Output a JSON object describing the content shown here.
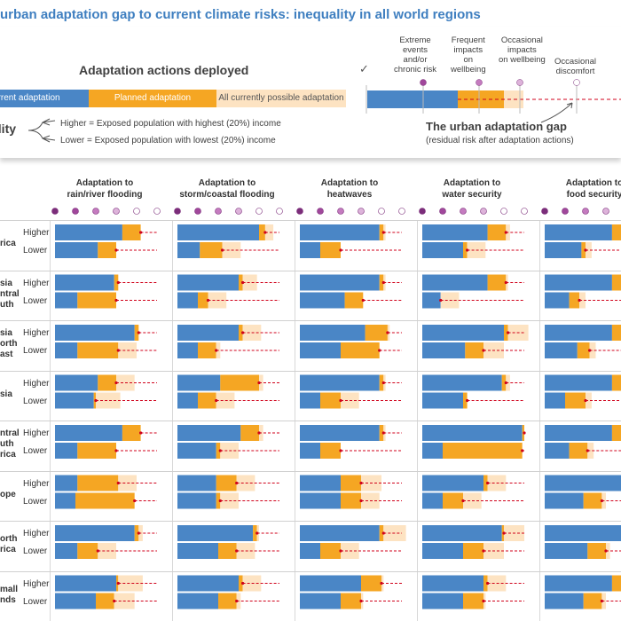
{
  "title": "urban adaptation gap to current climate risks: inequality in all world regions",
  "legend": {
    "heading": "Adaptation actions deployed",
    "current": "urrent adaptation",
    "planned": "Planned adaptation",
    "possible": "All currently possible adaptation",
    "colors": {
      "current": "#4a86c6",
      "planned": "#f5a623",
      "possible": "#fde3c2",
      "gap": "#d0021b"
    }
  },
  "inequality": {
    "label": "ality",
    "higher": "Higher = Exposed population with highest (20%) income",
    "lower": "Lower = Exposed population with lowest (20%) income"
  },
  "risk_levels": {
    "check": "✓",
    "extreme": [
      "Extreme",
      "events",
      "and/or",
      "chronic risk"
    ],
    "frequent": [
      "Frequent",
      "impacts",
      "on",
      "wellbeing"
    ],
    "occasional_impacts": [
      "Occasional",
      "impacts",
      "on wellbeing"
    ],
    "occasional_discomfort": [
      "Occasional",
      "discomfort"
    ]
  },
  "gap": {
    "title": "The urban adaptation gap",
    "subtitle": "(residual risk after adaptation actions)"
  },
  "row_labels": {
    "higher": "Higher",
    "lower": "Lower"
  },
  "chart_data": {
    "type": "bar",
    "orientation": "horizontal stacked",
    "scale_note": "bar lengths in units of the 5-step risk scale (1 dot = 1 unit)",
    "columns": [
      [
        "Adaptation to",
        "rain/river flooding"
      ],
      [
        "Adaptation to",
        "storm/coastal flooding"
      ],
      [
        "Adaptation to",
        "heatwaves"
      ],
      [
        "Adaptation to",
        "water security"
      ],
      [
        "Adaptation to",
        "food security"
      ]
    ],
    "regions": [
      [
        "rica"
      ],
      [
        "sia",
        "ntral",
        "uth"
      ],
      [
        "sia",
        "orth",
        "ast"
      ],
      [
        "sia"
      ],
      [
        "ntral",
        "uth",
        "rica"
      ],
      [
        "ope"
      ],
      [
        "orth",
        "rica"
      ],
      [
        "mall",
        "nds"
      ]
    ],
    "bars": [
      [
        [
          [
            3.3,
            0.9,
            0
          ],
          [
            2.1,
            0.9,
            0
          ]
        ],
        [
          [
            4.0,
            0.3,
            0.4
          ],
          [
            1.1,
            1.1,
            0.9
          ]
        ],
        [
          [
            3.9,
            0.2,
            0.1
          ],
          [
            1.0,
            1.0,
            0
          ]
        ],
        [
          [
            3.2,
            0.9,
            0.2
          ],
          [
            2.0,
            0.2,
            0.9
          ]
        ],
        [
          [
            3.3,
            0.9,
            0.2
          ],
          [
            1.8,
            0.2,
            0.3
          ]
        ]
      ],
      [
        [
          [
            2.9,
            0.2,
            0
          ],
          [
            1.1,
            1.9,
            0
          ]
        ],
        [
          [
            3.0,
            0.2,
            0.7
          ],
          [
            1.0,
            0.5,
            0.9
          ]
        ],
        [
          [
            3.9,
            0.2,
            0.1
          ],
          [
            2.2,
            0.9,
            0
          ]
        ],
        [
          [
            3.2,
            0.9,
            0.1
          ],
          [
            0.9,
            0,
            0.9
          ]
        ],
        [
          [
            3.3,
            0.9,
            0.2
          ],
          [
            1.2,
            0.5,
            0.3
          ]
        ]
      ],
      [
        [
          [
            3.9,
            0.2,
            0
          ],
          [
            1.1,
            2.0,
            0.9
          ]
        ],
        [
          [
            3.0,
            0.2,
            0.9
          ],
          [
            1.0,
            0.9,
            0.2
          ]
        ],
        [
          [
            3.2,
            1.1,
            0.1
          ],
          [
            2.0,
            1.9,
            0
          ]
        ],
        [
          [
            4.0,
            0.2,
            1.0
          ],
          [
            2.1,
            0.9,
            1.0
          ]
        ],
        [
          [
            3.3,
            0.9,
            0.2
          ],
          [
            1.6,
            0.6,
            0.3
          ]
        ]
      ],
      [
        [
          [
            2.1,
            0.9,
            0.9
          ],
          [
            1.9,
            0.1,
            1.2
          ]
        ],
        [
          [
            2.1,
            1.9,
            0.2
          ],
          [
            1.0,
            0.9,
            0.9
          ]
        ],
        [
          [
            3.9,
            0.2,
            0.1
          ],
          [
            1.0,
            1.0,
            0.9
          ]
        ],
        [
          [
            3.9,
            0.2,
            0.2
          ],
          [
            2.0,
            0.2,
            0
          ]
        ],
        [
          [
            3.3,
            0.9,
            0.2
          ],
          [
            1.0,
            1.0,
            0.3
          ]
        ]
      ],
      [
        [
          [
            3.3,
            0.9,
            0
          ],
          [
            1.1,
            1.9,
            0
          ]
        ],
        [
          [
            3.1,
            0.9,
            0.2
          ],
          [
            1.9,
            0.2,
            0.9
          ]
        ],
        [
          [
            3.9,
            0.2,
            0.1
          ],
          [
            1.0,
            1.0,
            0
          ]
        ],
        [
          [
            4.9,
            0.1,
            0
          ],
          [
            1.0,
            3.9,
            0
          ]
        ],
        [
          [
            3.3,
            0.9,
            0.2
          ],
          [
            1.2,
            0.9,
            0.3
          ]
        ]
      ],
      [
        [
          [
            1.1,
            2.0,
            0.9
          ],
          [
            1.0,
            2.9,
            0
          ]
        ],
        [
          [
            1.9,
            1.0,
            0.9
          ],
          [
            1.9,
            0.2,
            0.9
          ]
        ],
        [
          [
            2.0,
            1.0,
            1.0
          ],
          [
            2.0,
            1.0,
            0.9
          ]
        ],
        [
          [
            3.0,
            0.2,
            0.9
          ],
          [
            1.0,
            1.0,
            0.9
          ]
        ],
        [
          [
            3.9,
            0.2,
            0.2
          ],
          [
            1.9,
            0.9,
            0.2
          ]
        ]
      ],
      [
        [
          [
            3.9,
            0.2,
            0.2
          ],
          [
            1.1,
            1.0,
            0.9
          ]
        ],
        [
          [
            3.7,
            0.2,
            0.1
          ],
          [
            2.0,
            0.9,
            0.9
          ]
        ],
        [
          [
            3.9,
            0.2,
            1.1
          ],
          [
            1.0,
            1.0,
            0.9
          ]
        ],
        [
          [
            3.9,
            0.1,
            1.0
          ],
          [
            2.0,
            1.0,
            1.0
          ]
        ],
        [
          [
            3.9,
            0.2,
            0.2
          ],
          [
            2.1,
            0.9,
            0.2
          ]
        ]
      ],
      [
        [
          [
            3.0,
            0.1,
            1.2
          ],
          [
            2.0,
            0.9,
            1.0
          ]
        ],
        [
          [
            3.0,
            0.2,
            0.9
          ],
          [
            2.0,
            0.9,
            0.2
          ]
        ],
        [
          [
            3.0,
            1.0,
            0.1
          ],
          [
            2.0,
            1.0,
            0.1
          ]
        ],
        [
          [
            3.0,
            0.2,
            0.9
          ],
          [
            2.0,
            1.0,
            0.1
          ]
        ],
        [
          [
            3.3,
            0.9,
            0.2
          ],
          [
            1.9,
            0.9,
            0.2
          ]
        ]
      ]
    ]
  }
}
